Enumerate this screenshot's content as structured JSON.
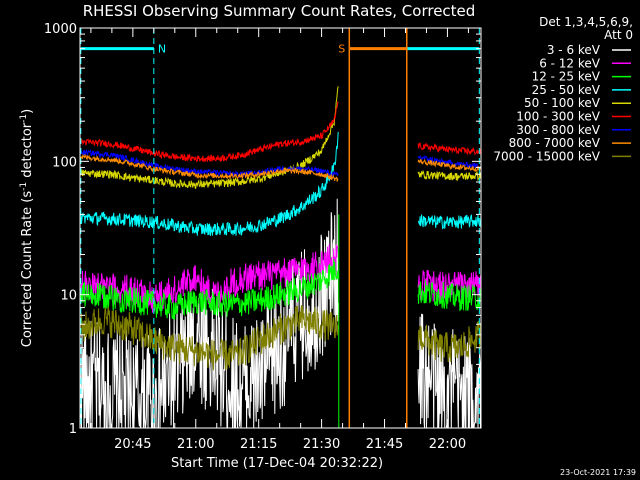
{
  "chart_data": {
    "type": "line",
    "title": "RHESSI Observing Summary Count Rates, Corrected",
    "xlabel": "Start Time (17-Dec-04 20:32:22)",
    "ylabel_main": "Corrected Count Rate (s",
    "ylabel_sup1": "-1",
    "ylabel_mid": " detector",
    "ylabel_sup2": "-1",
    "ylabel_end": ")",
    "y_scale": "log",
    "ylim": [
      1,
      1000
    ],
    "xlim_min": [
      32.4,
      128
    ],
    "y_ticks": [
      {
        "value": 1,
        "label": "1"
      },
      {
        "value": 10,
        "label": "10"
      },
      {
        "value": 100,
        "label": "100"
      },
      {
        "value": 1000,
        "label": "1000"
      }
    ],
    "x_ticks": [
      {
        "value": 45,
        "label": "20:45"
      },
      {
        "value": 60,
        "label": "21:00"
      },
      {
        "value": 75,
        "label": "21:15"
      },
      {
        "value": 90,
        "label": "21:30"
      },
      {
        "value": 105,
        "label": "21:45"
      },
      {
        "value": 120,
        "label": "22:00"
      }
    ],
    "legend": {
      "header_line1": "Det 1,3,4,5,6,9,",
      "header_line2": "Att 0",
      "placement": "right"
    },
    "series": [
      {
        "name": "3 - 6 keV",
        "color": "#ffffff",
        "pre": [
          [
            32.4,
            2.2
          ],
          [
            40,
            1.8
          ],
          [
            50,
            1.6
          ],
          [
            58,
            3.5
          ],
          [
            60,
            5.5
          ],
          [
            64,
            3.5
          ],
          [
            70,
            2.0
          ],
          [
            76,
            2.5
          ],
          [
            80,
            4.0
          ],
          [
            84,
            6.5
          ],
          [
            88,
            8.0
          ],
          [
            92,
            13
          ],
          [
            94,
            18
          ]
        ],
        "post": [
          [
            113,
            3.0
          ],
          [
            118,
            2.0
          ],
          [
            123,
            1.8
          ],
          [
            128,
            1.6
          ]
        ],
        "noise": 0.5
      },
      {
        "name": "6 - 12 keV",
        "color": "#ff00ff",
        "pre": [
          [
            32.4,
            11.5
          ],
          [
            40,
            11
          ],
          [
            45,
            10.8
          ],
          [
            50,
            9.5
          ],
          [
            56,
            11
          ],
          [
            60,
            14
          ],
          [
            62,
            11
          ],
          [
            65,
            10
          ],
          [
            70,
            13
          ],
          [
            75,
            14
          ],
          [
            80,
            14
          ],
          [
            85,
            15.5
          ],
          [
            90,
            17
          ],
          [
            94,
            20
          ]
        ],
        "post": [
          [
            113,
            12
          ],
          [
            118,
            11.5
          ],
          [
            123,
            11.5
          ],
          [
            128,
            11.5
          ]
        ],
        "noise": 0.12
      },
      {
        "name": "12 - 25 keV",
        "color": "#00ff00",
        "pre": [
          [
            32.4,
            10
          ],
          [
            40,
            9.5
          ],
          [
            45,
            9
          ],
          [
            50,
            8.5
          ],
          [
            55,
            8
          ],
          [
            60,
            9
          ],
          [
            65,
            8.5
          ],
          [
            70,
            8.5
          ],
          [
            75,
            9
          ],
          [
            80,
            10
          ],
          [
            85,
            11
          ],
          [
            90,
            13
          ],
          [
            94,
            16
          ]
        ],
        "post": [
          [
            113,
            10.5
          ],
          [
            118,
            10
          ],
          [
            123,
            9.5
          ],
          [
            128,
            9.5
          ]
        ],
        "noise": 0.1
      },
      {
        "name": "25 - 50 keV",
        "color": "#00ffff",
        "pre": [
          [
            32.4,
            38
          ],
          [
            40,
            37
          ],
          [
            50,
            35
          ],
          [
            55,
            33
          ],
          [
            60,
            31
          ],
          [
            65,
            31
          ],
          [
            70,
            31
          ],
          [
            75,
            33
          ],
          [
            80,
            37
          ],
          [
            85,
            45
          ],
          [
            90,
            60
          ],
          [
            93,
            90
          ],
          [
            94,
            160
          ]
        ],
        "post": [
          [
            113,
            36
          ],
          [
            118,
            35
          ],
          [
            123,
            35
          ],
          [
            128,
            36
          ]
        ],
        "noise": 0.05
      },
      {
        "name": "50 - 100 keV",
        "color": "#d8d800",
        "pre": [
          [
            32.4,
            82
          ],
          [
            40,
            80
          ],
          [
            45,
            75
          ],
          [
            50,
            72
          ],
          [
            55,
            68
          ],
          [
            60,
            67
          ],
          [
            65,
            68
          ],
          [
            70,
            70
          ],
          [
            75,
            74
          ],
          [
            80,
            82
          ],
          [
            85,
            92
          ],
          [
            90,
            120
          ],
          [
            93,
            200
          ],
          [
            94,
            370
          ]
        ],
        "post": [
          [
            113,
            80
          ],
          [
            118,
            78
          ],
          [
            123,
            77
          ],
          [
            128,
            78
          ]
        ],
        "noise": 0.03
      },
      {
        "name": "100 - 300 keV",
        "color": "#ff0000",
        "pre": [
          [
            32.4,
            140
          ],
          [
            40,
            135
          ],
          [
            45,
            125
          ],
          [
            50,
            115
          ],
          [
            55,
            108
          ],
          [
            60,
            105
          ],
          [
            65,
            105
          ],
          [
            70,
            110
          ],
          [
            75,
            122
          ],
          [
            80,
            135
          ],
          [
            85,
            140
          ],
          [
            90,
            155
          ],
          [
            93,
            200
          ],
          [
            94,
            290
          ]
        ],
        "post": [
          [
            113,
            130
          ],
          [
            118,
            125
          ],
          [
            123,
            120
          ],
          [
            128,
            118
          ]
        ],
        "noise": 0.025
      },
      {
        "name": "300 - 800 keV",
        "color": "#0000ff",
        "pre": [
          [
            32.4,
            117
          ],
          [
            40,
            112
          ],
          [
            45,
            102
          ],
          [
            50,
            93
          ],
          [
            55,
            88
          ],
          [
            60,
            84
          ],
          [
            65,
            82
          ],
          [
            70,
            80
          ],
          [
            75,
            82
          ],
          [
            80,
            88
          ],
          [
            85,
            88
          ],
          [
            90,
            85
          ],
          [
            94,
            78
          ]
        ],
        "post": [
          [
            113,
            108
          ],
          [
            118,
            100
          ],
          [
            123,
            95
          ],
          [
            128,
            92
          ]
        ],
        "noise": 0.02
      },
      {
        "name": "800 - 7000 keV",
        "color": "#ff8c00",
        "pre": [
          [
            32.4,
            108
          ],
          [
            40,
            103
          ],
          [
            45,
            96
          ],
          [
            50,
            88
          ],
          [
            55,
            83
          ],
          [
            60,
            79
          ],
          [
            65,
            78
          ],
          [
            70,
            78
          ],
          [
            75,
            80
          ],
          [
            80,
            85
          ],
          [
            85,
            84
          ],
          [
            90,
            80
          ],
          [
            94,
            73
          ]
        ],
        "post": [
          [
            113,
            100
          ],
          [
            118,
            95
          ],
          [
            123,
            90
          ],
          [
            128,
            88
          ]
        ],
        "noise": 0.02
      },
      {
        "name": "7000 - 15000 keV",
        "color": "#808000",
        "pre": [
          [
            32.4,
            5.5
          ],
          [
            38,
            6.5
          ],
          [
            45,
            5.5
          ],
          [
            50,
            4.5
          ],
          [
            55,
            4.0
          ],
          [
            60,
            3.8
          ],
          [
            65,
            3.5
          ],
          [
            70,
            3.5
          ],
          [
            75,
            4.5
          ],
          [
            80,
            5.5
          ],
          [
            85,
            6.5
          ],
          [
            90,
            6.0
          ],
          [
            94,
            5.5
          ]
        ],
        "post": [
          [
            113,
            5.0
          ],
          [
            118,
            4.0
          ],
          [
            123,
            4.0
          ],
          [
            128,
            5.0
          ]
        ],
        "noise": 0.12
      }
    ],
    "markers": {
      "night_color": "#00ffff",
      "night_label": "N",
      "night_boundaries": [
        32.6,
        50,
        110.3,
        127.6
      ],
      "saa_color": "#ff7f00",
      "saa_label": "S",
      "saa_boundaries": [
        96.6,
        110.3
      ],
      "flag_value": 700,
      "green_line_x": 94.1
    }
  },
  "footer": {
    "timestamp": "23-Oct-2021 17:39"
  }
}
